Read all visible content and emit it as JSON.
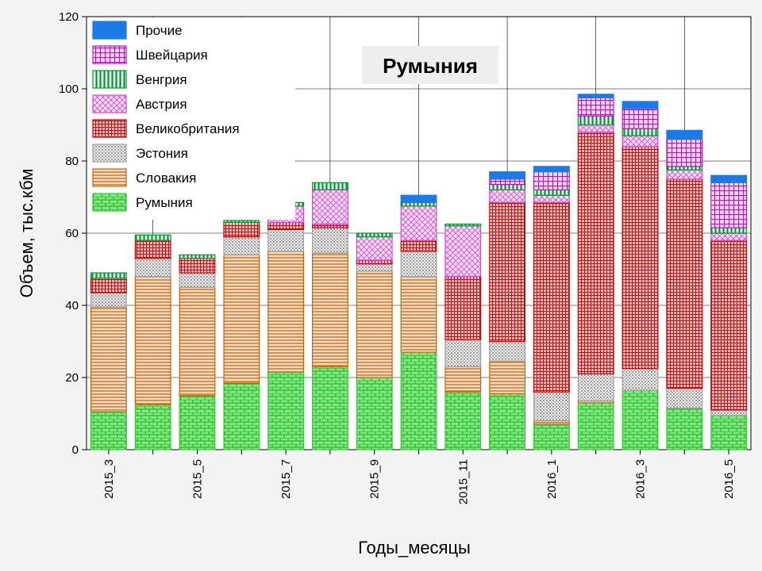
{
  "chart_data": {
    "type": "bar",
    "stacked": true,
    "title": "Румыния",
    "xlabel": "Годы_месяцы",
    "ylabel": "Объем, тыс.кбм",
    "ylim": [
      0,
      120
    ],
    "yticks": [
      0,
      20,
      40,
      60,
      80,
      100,
      120
    ],
    "grid": true,
    "legend_position": "top-left",
    "categories": [
      "2015_3",
      "2015_4",
      "2015_5",
      "2015_6",
      "2015_7",
      "2015_8",
      "2015_9",
      "2015_10",
      "2015_11",
      "2015_12",
      "2016_1",
      "2016_2",
      "2016_3",
      "2016_4",
      "2016_5"
    ],
    "xtick_labels": [
      "2015_3",
      "",
      "2015_5",
      "",
      "2015_7",
      "",
      "2015_9",
      "",
      "2015_11",
      "",
      "2016_1",
      "",
      "2016_3",
      "",
      "2016_5"
    ],
    "series": [
      {
        "name": "Румыния",
        "color": "#33cc33",
        "pattern": "brick",
        "values": [
          10.5,
          12.5,
          15,
          18.5,
          21.5,
          23,
          20,
          27,
          16,
          15.5,
          7,
          13,
          16.5,
          11.5,
          9.5
        ]
      },
      {
        "name": "Словакия",
        "color": "#cc6600",
        "pattern": "hlines",
        "values": [
          29,
          35.5,
          30,
          35.5,
          33.5,
          31.5,
          29.5,
          21,
          7,
          9,
          1,
          0.5,
          0,
          0,
          0
        ]
      },
      {
        "name": "Эстония",
        "color": "#a0a0a0",
        "pattern": "dots",
        "values": [
          4,
          5,
          4,
          5,
          6,
          7,
          2,
          7,
          7.5,
          5.5,
          8,
          7.5,
          6,
          5.5,
          1.5
        ]
      },
      {
        "name": "Великобритания",
        "color": "#cc0000",
        "pattern": "grid",
        "values": [
          4,
          5,
          4,
          4,
          2,
          1,
          1,
          3,
          17.5,
          38.5,
          52.5,
          67,
          61.5,
          58,
          47
        ]
      },
      {
        "name": "Австрия",
        "color": "#dd44dd",
        "pattern": "crosshatch",
        "values": [
          0,
          0,
          0,
          0,
          4.5,
          9.5,
          6.5,
          9.5,
          14,
          3.5,
          2,
          2,
          3,
          2.5,
          2
        ]
      },
      {
        "name": "Венгрия",
        "color": "#009933",
        "pattern": "vlines",
        "values": [
          1.5,
          1.5,
          1,
          0.5,
          1,
          2,
          1,
          1,
          0.5,
          1.5,
          1.5,
          2.5,
          2,
          1,
          1.5
        ]
      },
      {
        "name": "Швейцария",
        "color": "#bb11bb",
        "pattern": "boxgrid",
        "values": [
          0,
          0,
          0,
          0,
          0,
          0,
          0,
          0,
          0,
          1.5,
          5,
          5,
          5.5,
          7.5,
          12.5
        ]
      },
      {
        "name": "Прочие",
        "color": "#1a7be8",
        "pattern": "solid",
        "values": [
          0,
          0,
          0,
          0,
          0,
          0,
          0,
          2,
          0,
          2,
          1.5,
          1,
          2,
          2.5,
          2
        ]
      }
    ]
  }
}
